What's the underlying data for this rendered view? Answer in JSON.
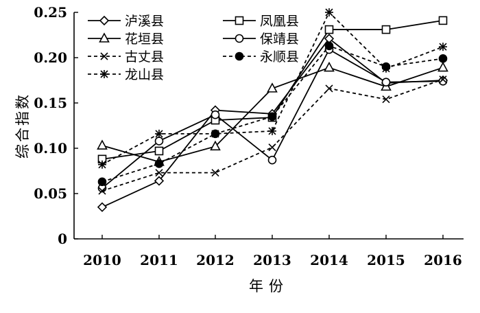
{
  "chart_data": {
    "type": "line",
    "title": "",
    "xlabel": "年份",
    "ylabel": "综合指数",
    "x": [
      "2010",
      "2011",
      "2012",
      "2013",
      "2014",
      "2015",
      "2016"
    ],
    "ylim": [
      0,
      0.25
    ],
    "yticks": [
      "0",
      "0.05",
      "0.10",
      "0.15",
      "0.20",
      "0.25"
    ],
    "grid": false,
    "legend_position": "top-left",
    "series": [
      {
        "name": "泸溪县",
        "line": "solid",
        "marker": "diamond-open",
        "values": [
          0.035,
          0.064,
          0.142,
          0.138,
          0.221,
          0.172,
          0.175
        ]
      },
      {
        "name": "凤凰县",
        "line": "solid",
        "marker": "square-open",
        "values": [
          0.088,
          0.097,
          0.131,
          0.134,
          0.231,
          0.231,
          0.241
        ]
      },
      {
        "name": "花垣县",
        "line": "solid",
        "marker": "triangle-open",
        "values": [
          0.103,
          0.085,
          0.102,
          0.166,
          0.189,
          0.168,
          0.189
        ]
      },
      {
        "name": "保靖县",
        "line": "solid",
        "marker": "circle-open",
        "values": [
          0.056,
          0.108,
          0.137,
          0.087,
          0.209,
          0.173,
          0.174
        ]
      },
      {
        "name": "古丈县",
        "line": "dashed",
        "marker": "x",
        "values": [
          0.053,
          0.073,
          0.073,
          0.101,
          0.166,
          0.154,
          0.176
        ]
      },
      {
        "name": "永顺县",
        "line": "dashed",
        "marker": "circle-filled",
        "values": [
          0.063,
          0.083,
          0.116,
          0.135,
          0.213,
          0.19,
          0.199
        ]
      },
      {
        "name": "龙山县",
        "line": "dashed",
        "marker": "asterisk",
        "values": [
          0.082,
          0.116,
          0.116,
          0.119,
          0.25,
          0.188,
          0.212
        ]
      }
    ]
  }
}
